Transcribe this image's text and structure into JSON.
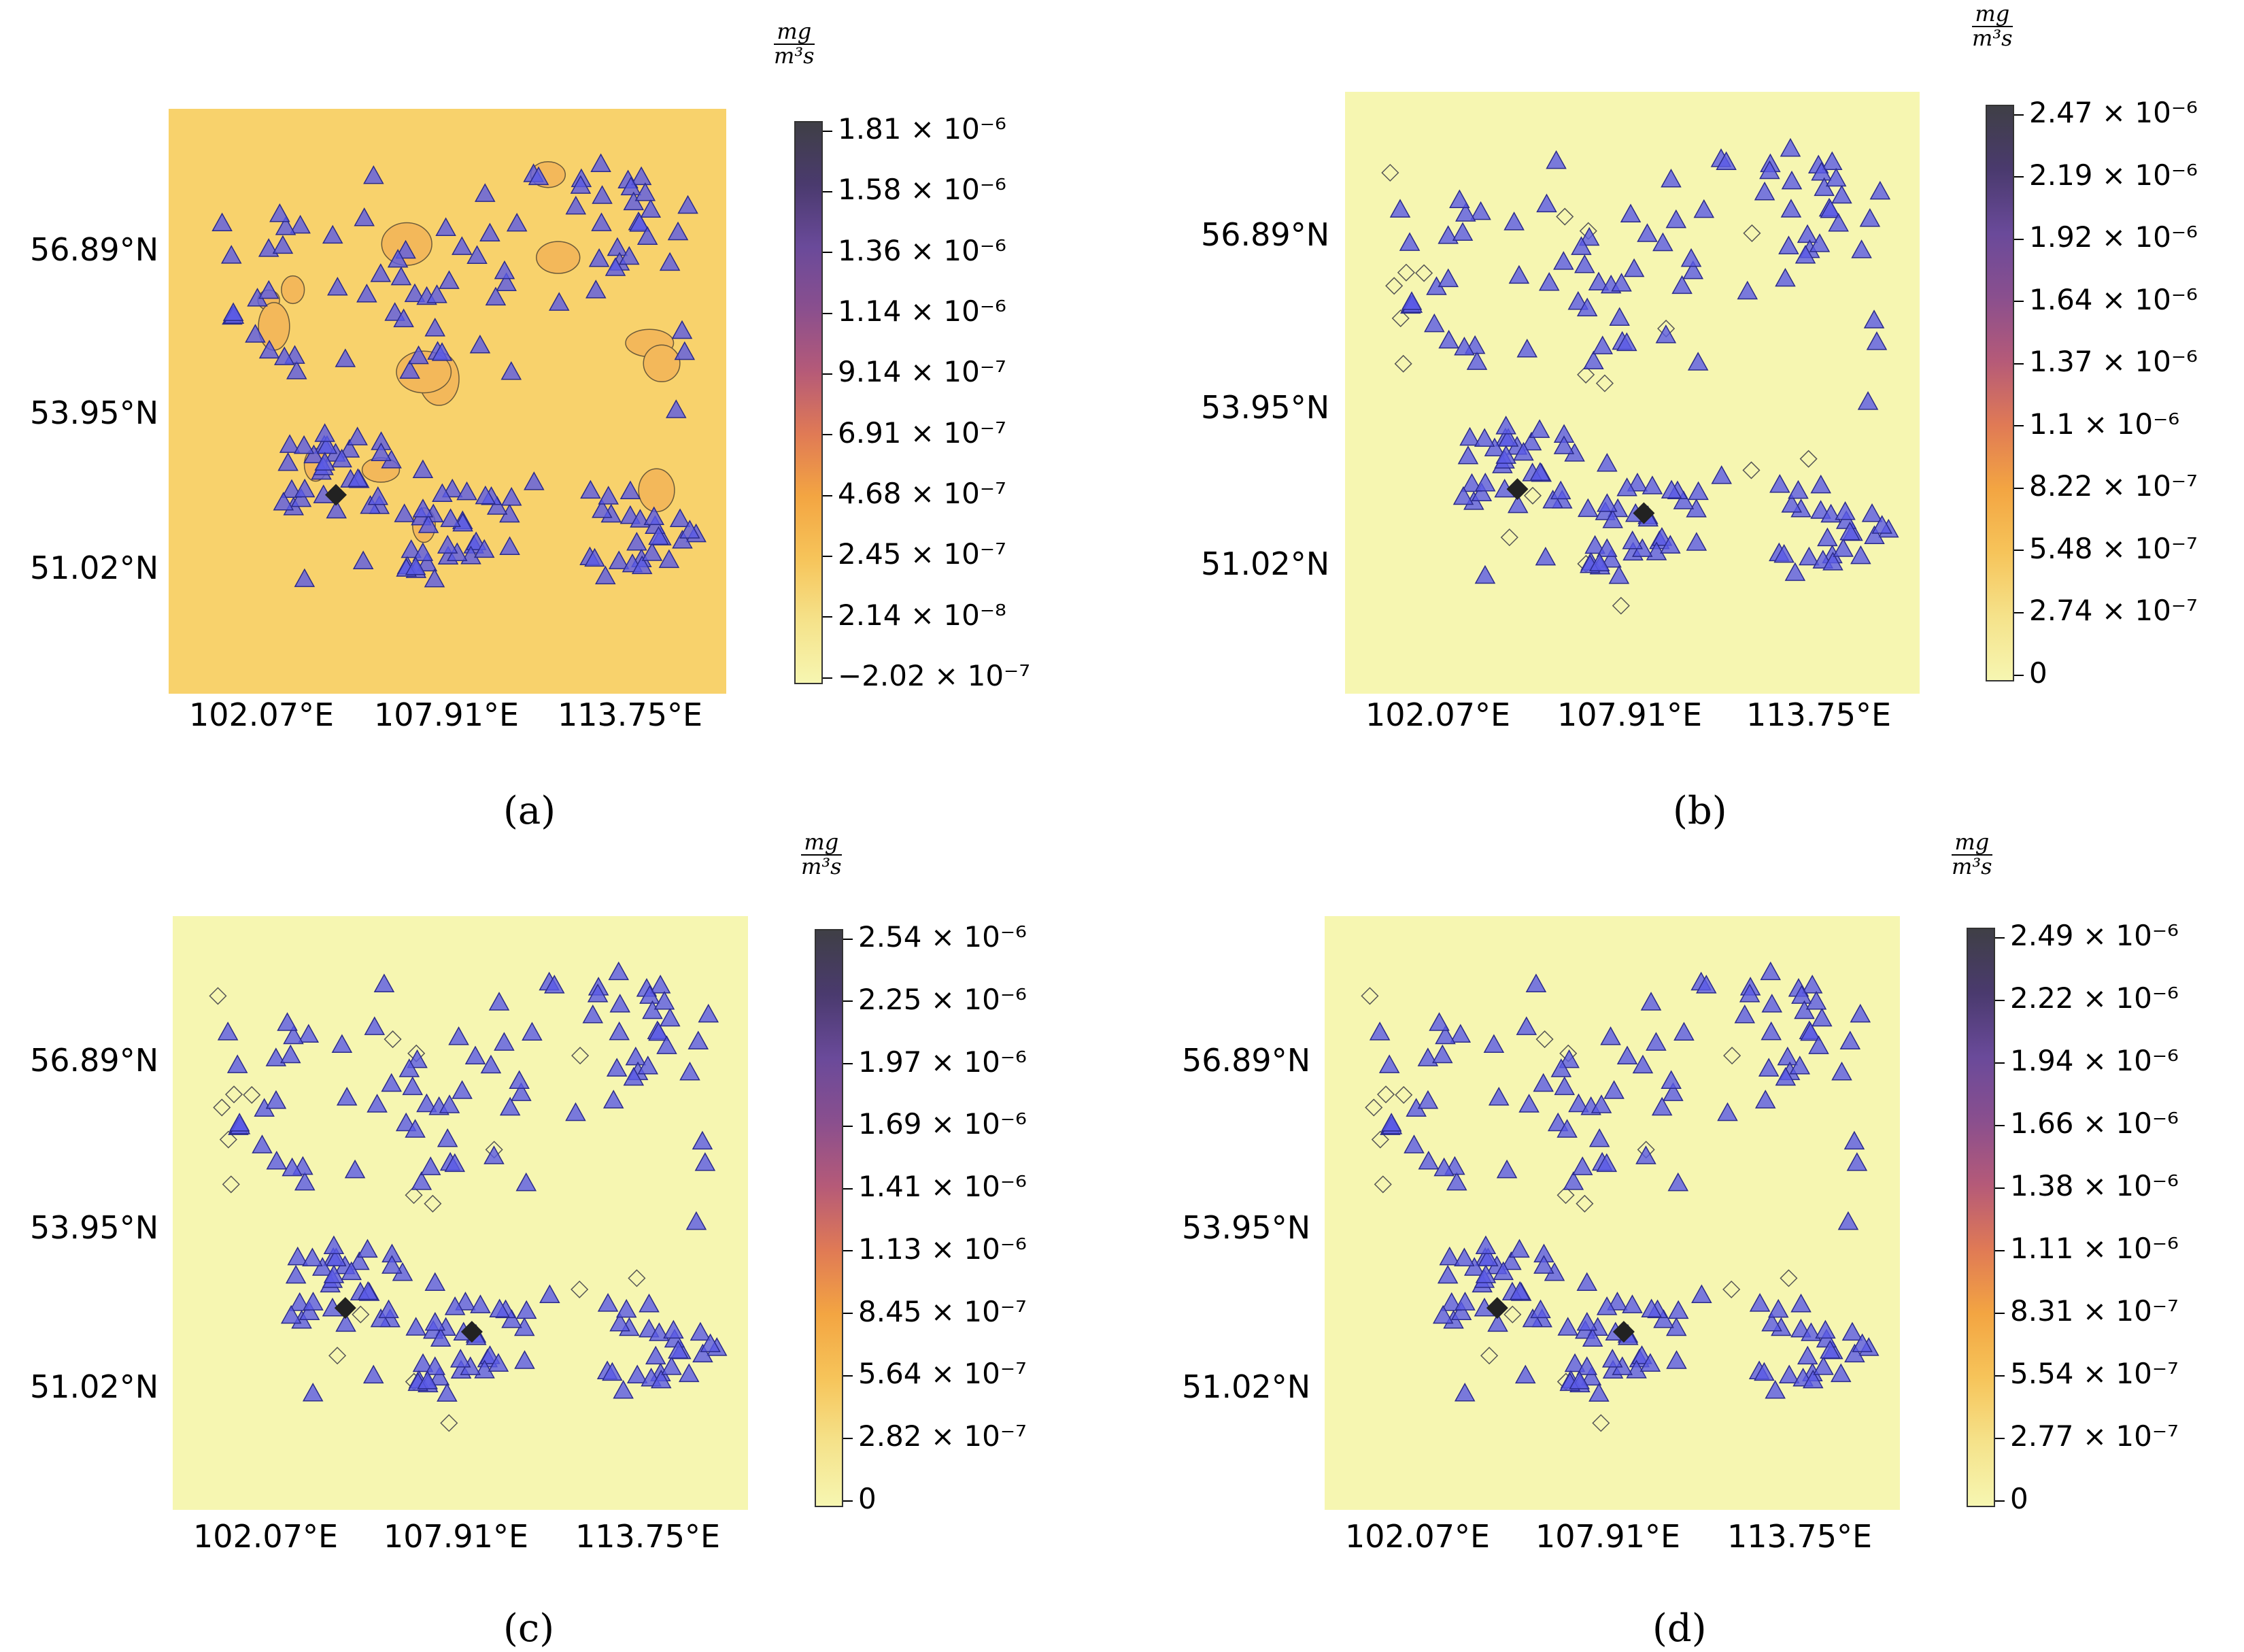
{
  "units": {
    "numerator": "mg",
    "denominator": "m³s"
  },
  "axes": {
    "lat_labels": [
      "56.89°N",
      "53.95°N",
      "51.02°N"
    ],
    "lon_labels": [
      "102.07°E",
      "107.91°E",
      "113.75°E"
    ]
  },
  "panels": [
    {
      "id": "a",
      "caption": "(a)",
      "background": "#f8d26c",
      "colorbar_ticks": [
        "1.81 × 10⁻⁶",
        "1.58 × 10⁻⁶",
        "1.36 × 10⁻⁶",
        "1.14 × 10⁻⁶",
        "9.14 × 10⁻⁷",
        "6.91 × 10⁻⁷",
        "4.68 × 10⁻⁷",
        "2.45 × 10⁻⁷",
        "2.14 × 10⁻⁸",
        "−2.02 × 10⁻⁷"
      ]
    },
    {
      "id": "b",
      "caption": "(b)",
      "background": "#f6f6b1",
      "colorbar_ticks": [
        "2.47 × 10⁻⁶",
        "2.19 × 10⁻⁶",
        "1.92 × 10⁻⁶",
        "1.64 × 10⁻⁶",
        "1.37 × 10⁻⁶",
        "1.1 × 10⁻⁶",
        "8.22 × 10⁻⁷",
        "5.48 × 10⁻⁷",
        "2.74 × 10⁻⁷",
        "0"
      ]
    },
    {
      "id": "c",
      "caption": "(c)",
      "background": "#f6f6b1",
      "colorbar_ticks": [
        "2.54 × 10⁻⁶",
        "2.25 × 10⁻⁶",
        "1.97 × 10⁻⁶",
        "1.69 × 10⁻⁶",
        "1.41 × 10⁻⁶",
        "1.13 × 10⁻⁶",
        "8.45 × 10⁻⁷",
        "5.64 × 10⁻⁷",
        "2.82 × 10⁻⁷",
        "0"
      ]
    },
    {
      "id": "d",
      "caption": "(d)",
      "background": "#f6f6b1",
      "colorbar_ticks": [
        "2.49 × 10⁻⁶",
        "2.22 × 10⁻⁶",
        "1.94 × 10⁻⁶",
        "1.66 × 10⁻⁶",
        "1.38 × 10⁻⁶",
        "1.11 × 10⁻⁶",
        "8.31 × 10⁻⁷",
        "5.54 × 10⁻⁷",
        "2.77 × 10⁻⁷",
        "0"
      ]
    }
  ],
  "colors": {
    "station_marker": "#5a5ae6",
    "colormap": [
      "#3f3f46",
      "#4a3a6e",
      "#6a4a9a",
      "#8a4f8e",
      "#b55a78",
      "#e07a55",
      "#f3a542",
      "#f6c45a",
      "#f5e28a",
      "#f6f6b1"
    ]
  }
}
